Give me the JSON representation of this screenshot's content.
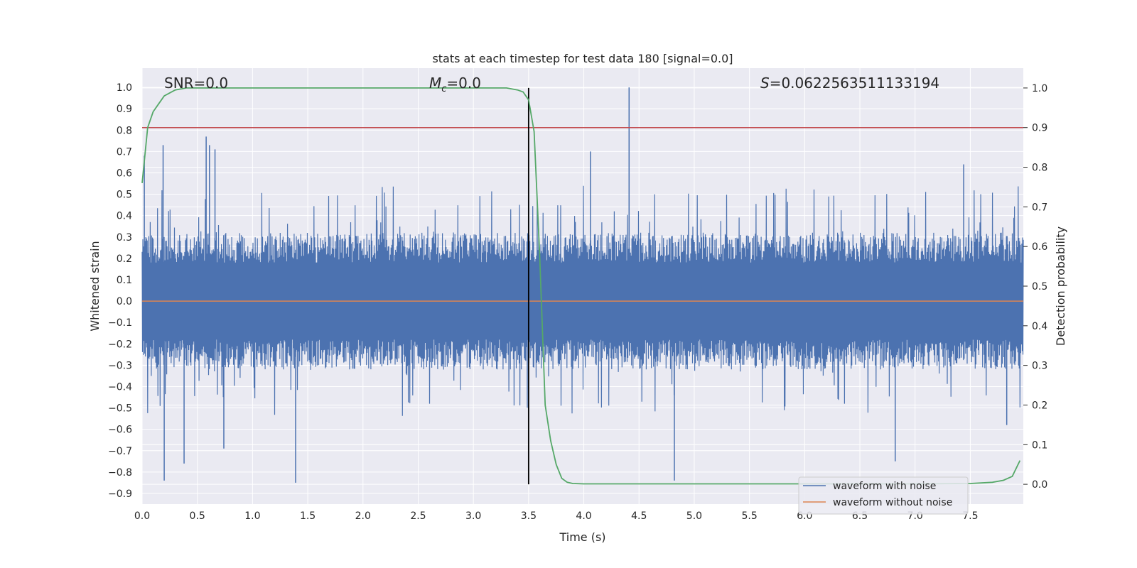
{
  "chart_data": {
    "type": "line",
    "title": "stats at each timestep for test data 180 [signal=0.0]",
    "xlabel": "Time (s)",
    "ylabel_left": "Whitened strain",
    "ylabel_right": "Detection probability",
    "xlim": [
      0.0,
      7.98
    ],
    "ylim_left": [
      -0.95,
      1.09
    ],
    "ylim_right": [
      -0.05,
      1.05
    ],
    "x_ticks": [
      "0.0",
      "0.5",
      "1.0",
      "1.5",
      "2.0",
      "2.5",
      "3.0",
      "3.5",
      "4.0",
      "4.5",
      "5.0",
      "5.5",
      "6.0",
      "6.5",
      "7.0",
      "7.5"
    ],
    "y_left_ticks": [
      "1.0",
      "0.9",
      "0.8",
      "0.7",
      "0.6",
      "0.5",
      "0.4",
      "0.3",
      "0.2",
      "0.1",
      "0.0",
      "-0.1",
      "-0.2",
      "-0.3",
      "-0.4",
      "-0.5",
      "-0.6",
      "-0.7",
      "-0.8",
      "-0.9"
    ],
    "y_right_ticks": [
      "1.0",
      "0.9",
      "0.8",
      "0.7",
      "0.6",
      "0.5",
      "0.4",
      "0.3",
      "0.2",
      "0.1",
      "0.0"
    ],
    "grid": true,
    "legend_position": "lower-right",
    "annotations": {
      "snr": "SNR=0.0",
      "mc_symbol": "M",
      "mc_sub": "c",
      "mc_value": "=0.0",
      "s_symbol": "S",
      "s_value": "=0.0622563511133194"
    },
    "series": [
      {
        "name": "waveform with noise",
        "color": "#4c72b0",
        "axis": "left",
        "description_note": "noise strain, dense band mostly within -0.3 to 0.3",
        "peaks_x": [
          0.02,
          0.19,
          0.2,
          0.38,
          0.58,
          0.61,
          0.66,
          0.74,
          1.39,
          3.5,
          4.06,
          4.41,
          4.82,
          6.82,
          7.44,
          7.83
        ],
        "peaks_y": [
          0.68,
          0.73,
          -0.84,
          -0.76,
          0.77,
          0.73,
          0.71,
          -0.69,
          -0.85,
          0.47,
          0.7,
          1.0,
          -0.84,
          -0.75,
          0.64,
          -0.58
        ]
      },
      {
        "name": "waveform without noise",
        "color": "#dd8452",
        "axis": "left",
        "x": [
          0.0,
          7.98
        ],
        "y": [
          0.0,
          0.0
        ]
      },
      {
        "name": "detection probability",
        "color": "#55a868",
        "axis": "right",
        "x": [
          0.0,
          0.05,
          0.1,
          0.15,
          0.2,
          0.3,
          0.4,
          0.6,
          1.0,
          2.0,
          3.0,
          3.3,
          3.4,
          3.45,
          3.5,
          3.55,
          3.6,
          3.65,
          3.7,
          3.75,
          3.8,
          3.85,
          3.9,
          4.0,
          4.5,
          5.0,
          6.0,
          7.0,
          7.5,
          7.7,
          7.8,
          7.88,
          7.95
        ],
        "y": [
          0.76,
          0.9,
          0.94,
          0.96,
          0.98,
          0.995,
          1.0,
          1.0,
          1.0,
          1.0,
          1.0,
          1.0,
          0.995,
          0.99,
          0.97,
          0.89,
          0.58,
          0.2,
          0.11,
          0.05,
          0.015,
          0.005,
          0.002,
          0.001,
          0.001,
          0.001,
          0.001,
          0.001,
          0.002,
          0.005,
          0.01,
          0.02,
          0.06
        ]
      }
    ],
    "threshold": {
      "axis": "right",
      "value": 0.9,
      "color": "#c44e52"
    },
    "vertical_marker": {
      "x": 3.5,
      "color": "#000000"
    },
    "legend": [
      {
        "label": "waveform with noise",
        "color": "#4c72b0"
      },
      {
        "label": "waveform without noise",
        "color": "#dd8452"
      }
    ]
  }
}
